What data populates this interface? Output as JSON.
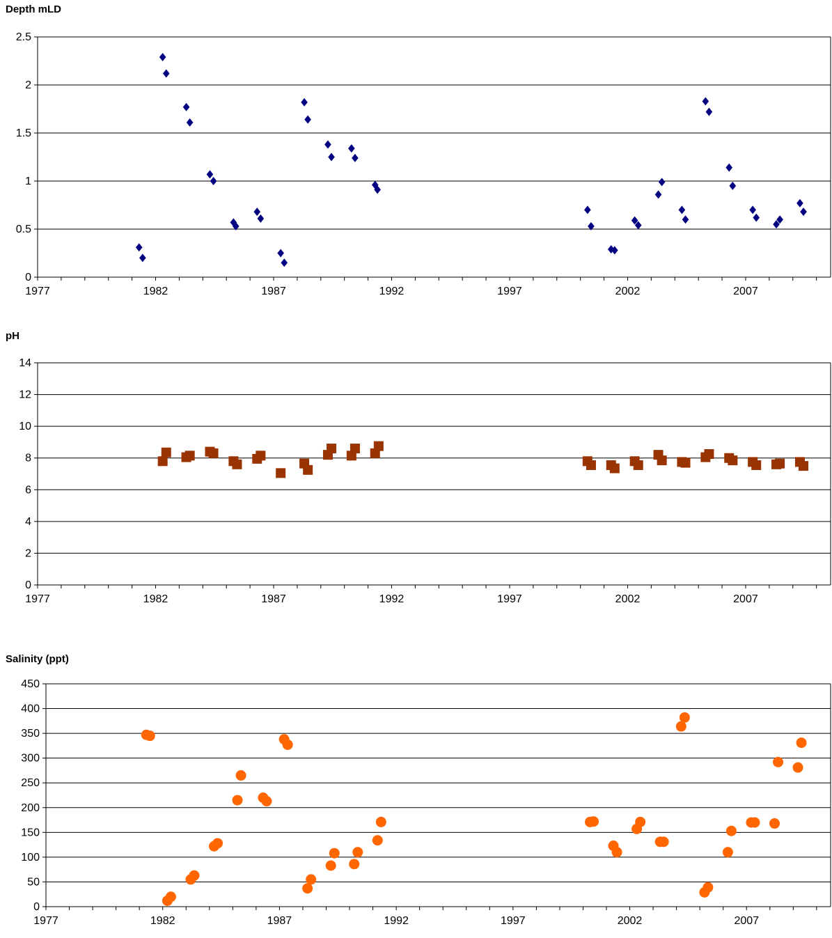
{
  "chart_data": [
    {
      "type": "scatter",
      "title": "Depth mLD",
      "xlim": [
        1977,
        2010.6
      ],
      "ylim": [
        0,
        2.5
      ],
      "x_ticks": [
        1977,
        1982,
        1987,
        1992,
        1997,
        2002,
        2007
      ],
      "x_tick_labels": [
        "1977",
        "1982",
        "1987",
        "1992",
        "1997",
        "2002",
        "2007"
      ],
      "y_ticks": [
        0,
        0.5,
        1,
        1.5,
        2,
        2.5
      ],
      "y_tick_labels": [
        "0",
        "0.5",
        "1",
        "1.5",
        "2",
        "2.5"
      ],
      "grid": "horizontal",
      "marker": "diamond",
      "color": "#000080",
      "points": [
        [
          1981.3,
          0.31
        ],
        [
          1981.45,
          0.2
        ],
        [
          1982.3,
          2.29
        ],
        [
          1982.45,
          2.12
        ],
        [
          1983.3,
          1.77
        ],
        [
          1983.45,
          1.61
        ],
        [
          1984.3,
          1.07
        ],
        [
          1984.45,
          1.0
        ],
        [
          1985.3,
          0.57
        ],
        [
          1985.4,
          0.53
        ],
        [
          1986.3,
          0.68
        ],
        [
          1986.45,
          0.61
        ],
        [
          1987.3,
          0.25
        ],
        [
          1987.45,
          0.15
        ],
        [
          1988.3,
          1.82
        ],
        [
          1988.45,
          1.64
        ],
        [
          1989.3,
          1.38
        ],
        [
          1989.45,
          1.25
        ],
        [
          1990.3,
          1.34
        ],
        [
          1990.45,
          1.24
        ],
        [
          1991.3,
          0.96
        ],
        [
          1991.4,
          0.91
        ],
        [
          2000.3,
          0.7
        ],
        [
          2000.45,
          0.53
        ],
        [
          2001.3,
          0.29
        ],
        [
          2001.45,
          0.28
        ],
        [
          2002.3,
          0.59
        ],
        [
          2002.45,
          0.54
        ],
        [
          2003.3,
          0.86
        ],
        [
          2003.45,
          0.99
        ],
        [
          2004.3,
          0.7
        ],
        [
          2004.45,
          0.6
        ],
        [
          2005.3,
          1.83
        ],
        [
          2005.45,
          1.72
        ],
        [
          2006.3,
          1.14
        ],
        [
          2006.45,
          0.95
        ],
        [
          2007.3,
          0.7
        ],
        [
          2007.45,
          0.62
        ],
        [
          2008.3,
          0.55
        ],
        [
          2008.45,
          0.6
        ],
        [
          2009.3,
          0.77
        ],
        [
          2009.45,
          0.68
        ]
      ]
    },
    {
      "type": "scatter",
      "title": "pH",
      "xlim": [
        1977,
        2010.6
      ],
      "ylim": [
        0,
        14
      ],
      "x_ticks": [
        1977,
        1982,
        1987,
        1992,
        1997,
        2002,
        2007
      ],
      "x_tick_labels": [
        "1977",
        "1982",
        "1987",
        "1992",
        "1997",
        "2002",
        "2007"
      ],
      "y_ticks": [
        0,
        2,
        4,
        6,
        8,
        10,
        12,
        14
      ],
      "y_tick_labels": [
        "0",
        "2",
        "4",
        "6",
        "8",
        "10",
        "12",
        "14"
      ],
      "grid": "horizontal",
      "marker": "square",
      "color": "#993300",
      "points": [
        [
          1982.3,
          7.8
        ],
        [
          1982.45,
          8.35
        ],
        [
          1983.3,
          8.05
        ],
        [
          1983.45,
          8.15
        ],
        [
          1984.3,
          8.4
        ],
        [
          1984.45,
          8.3
        ],
        [
          1985.3,
          7.8
        ],
        [
          1985.45,
          7.6
        ],
        [
          1986.3,
          7.95
        ],
        [
          1986.45,
          8.15
        ],
        [
          1987.3,
          7.05
        ],
        [
          1988.3,
          7.65
        ],
        [
          1988.45,
          7.25
        ],
        [
          1989.3,
          8.2
        ],
        [
          1989.45,
          8.6
        ],
        [
          1990.3,
          8.15
        ],
        [
          1990.45,
          8.6
        ],
        [
          1991.3,
          8.3
        ],
        [
          1991.45,
          8.75
        ],
        [
          2000.3,
          7.8
        ],
        [
          2000.45,
          7.55
        ],
        [
          2001.3,
          7.55
        ],
        [
          2001.45,
          7.35
        ],
        [
          2002.3,
          7.8
        ],
        [
          2002.45,
          7.55
        ],
        [
          2003.3,
          8.2
        ],
        [
          2003.45,
          7.85
        ],
        [
          2004.3,
          7.75
        ],
        [
          2004.45,
          7.7
        ],
        [
          2005.3,
          8.05
        ],
        [
          2005.45,
          8.25
        ],
        [
          2006.3,
          8.0
        ],
        [
          2006.45,
          7.85
        ],
        [
          2007.3,
          7.75
        ],
        [
          2007.45,
          7.55
        ],
        [
          2008.3,
          7.6
        ],
        [
          2008.45,
          7.65
        ],
        [
          2009.3,
          7.75
        ],
        [
          2009.45,
          7.5
        ]
      ]
    },
    {
      "type": "scatter",
      "title": "Salinity (ppt)",
      "xlim": [
        1977,
        2010.6
      ],
      "ylim": [
        0,
        450
      ],
      "x_ticks": [
        1977,
        1982,
        1987,
        1992,
        1997,
        2002,
        2007
      ],
      "x_tick_labels": [
        "1977",
        "1982",
        "1987",
        "1992",
        "1997",
        "2002",
        "2007"
      ],
      "y_ticks": [
        0,
        50,
        100,
        150,
        200,
        250,
        300,
        350,
        400,
        450
      ],
      "y_tick_labels": [
        "0",
        "50",
        "100",
        "150",
        "200",
        "250",
        "300",
        "350",
        "400",
        "450"
      ],
      "grid": "horizontal",
      "marker": "circle",
      "color": "#FF6600",
      "points": [
        [
          1981.3,
          347
        ],
        [
          1981.45,
          345
        ],
        [
          1982.2,
          12
        ],
        [
          1982.35,
          20
        ],
        [
          1983.2,
          55
        ],
        [
          1983.35,
          63
        ],
        [
          1984.2,
          122
        ],
        [
          1984.35,
          128
        ],
        [
          1985.2,
          215
        ],
        [
          1985.35,
          265
        ],
        [
          1986.3,
          220
        ],
        [
          1986.45,
          213
        ],
        [
          1987.2,
          338
        ],
        [
          1987.35,
          327
        ],
        [
          1988.2,
          37
        ],
        [
          1988.35,
          55
        ],
        [
          1989.2,
          83
        ],
        [
          1989.35,
          108
        ],
        [
          1990.2,
          86
        ],
        [
          1990.35,
          110
        ],
        [
          1991.2,
          134
        ],
        [
          1991.35,
          171
        ],
        [
          2000.3,
          171
        ],
        [
          2000.45,
          172
        ],
        [
          2001.3,
          123
        ],
        [
          2001.45,
          110
        ],
        [
          2002.3,
          157
        ],
        [
          2002.45,
          171
        ],
        [
          2003.3,
          131
        ],
        [
          2003.45,
          131
        ],
        [
          2004.2,
          364
        ],
        [
          2004.35,
          382
        ],
        [
          2005.2,
          29
        ],
        [
          2005.35,
          39
        ],
        [
          2006.2,
          110
        ],
        [
          2006.35,
          153
        ],
        [
          2007.2,
          170
        ],
        [
          2007.35,
          170
        ],
        [
          2008.2,
          168
        ],
        [
          2008.35,
          292
        ],
        [
          2009.2,
          281
        ],
        [
          2009.35,
          331
        ]
      ]
    }
  ]
}
